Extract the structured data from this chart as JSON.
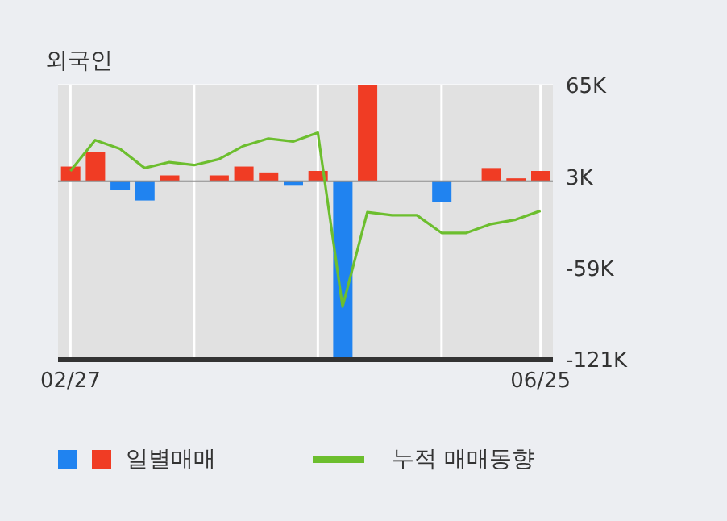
{
  "chart_data": {
    "type": "bar",
    "title": "외국인",
    "categories": [
      "02/27",
      null,
      null,
      null,
      null,
      null,
      null,
      null,
      null,
      null,
      null,
      null,
      null,
      null,
      null,
      null,
      null,
      null,
      null,
      "06/25"
    ],
    "series": [
      {
        "name": "일별매매",
        "colors": [
          "#f03c24",
          "#f03c24",
          "#2083f0",
          "#2083f0",
          "#f03c24",
          null,
          "#f03c24",
          "#f03c24",
          "#f03c24",
          "#2083f0",
          "#f03c24",
          "#2083f0",
          "#f03c24",
          null,
          null,
          "#2083f0",
          null,
          "#f03c24",
          "#f03c24",
          "#f03c24"
        ],
        "values": [
          10000,
          20000,
          -6000,
          -13000,
          4000,
          0,
          4000,
          10000,
          6000,
          -3000,
          7000,
          -120000,
          65000,
          0,
          0,
          -14000,
          0,
          9000,
          2000,
          7000
        ]
      },
      {
        "name": "누적 매매동향",
        "type": "line",
        "color": "#6cbe2e",
        "values": [
          7000,
          28000,
          22000,
          9000,
          13000,
          11000,
          15000,
          24000,
          29000,
          27000,
          33000,
          -85000,
          -21000,
          -23000,
          -23000,
          -35000,
          -35000,
          -29000,
          -26000,
          -20000
        ]
      }
    ],
    "ylim": [
      -121000,
      65000
    ],
    "yticks": [
      {
        "value": 65000,
        "label": "65K"
      },
      {
        "value": 3000,
        "label": "3K"
      },
      {
        "value": -59000,
        "label": "-59K"
      },
      {
        "value": -121000,
        "label": "-121K"
      }
    ],
    "ref_lines": [
      {
        "axis": "y",
        "value": 0,
        "color": "#8c8c8c"
      }
    ],
    "grid": true,
    "legend": "bottom",
    "marker": "none",
    "line_style": "solid"
  }
}
